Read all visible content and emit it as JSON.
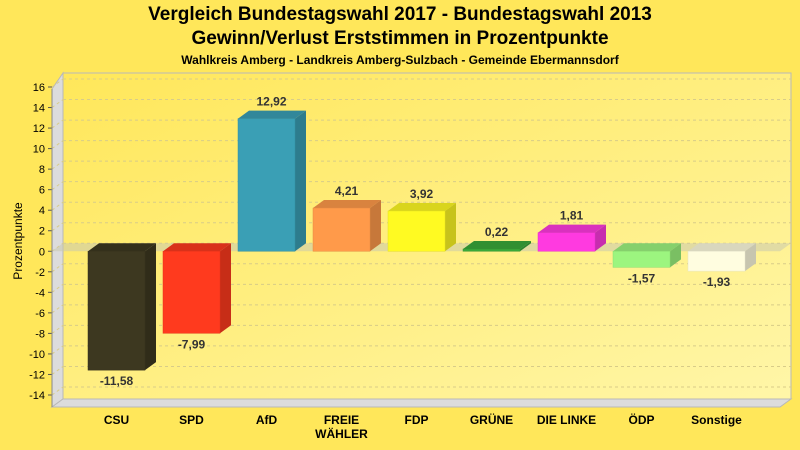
{
  "chart_data": {
    "type": "bar",
    "title": "Vergleich Bundestagswahl 2017 - Bundestagswahl 2013",
    "subtitle": "Gewinn/Verlust Erststimmen in Prozentpunkte",
    "subsubtitle": "Wahlkreis Amberg - Landkreis Amberg-Sulzbach - Gemeinde Ebermannsdorf",
    "xlabel": "",
    "ylabel": "Prozentpunkte",
    "ylim": [
      -14,
      16
    ],
    "yticks": [
      16,
      14,
      12,
      10,
      8,
      6,
      4,
      2,
      0,
      -2,
      -4,
      -6,
      -8,
      -10,
      -12,
      -14
    ],
    "grid": true,
    "categories": [
      "CSU",
      "SPD",
      "AfD",
      "FREIE WÄHLER",
      "FDP",
      "GRÜNE",
      "DIE LINKE",
      "ÖDP",
      "Sonstige"
    ],
    "values": [
      -11.58,
      -7.99,
      12.92,
      4.21,
      3.92,
      0.22,
      1.81,
      -1.57,
      -1.93
    ],
    "value_labels": [
      "-11,58",
      "-7,99",
      "12,92",
      "4,21",
      "3,92",
      "0,22",
      "1,81",
      "-1,57",
      "-1,93"
    ],
    "colors": [
      "#3D3820",
      "#FF3A1E",
      "#3A9FB5",
      "#FF9A4A",
      "#FFFA22",
      "#3AA83A",
      "#FF3AE0",
      "#9CF57F",
      "#FFFDE0"
    ]
  }
}
